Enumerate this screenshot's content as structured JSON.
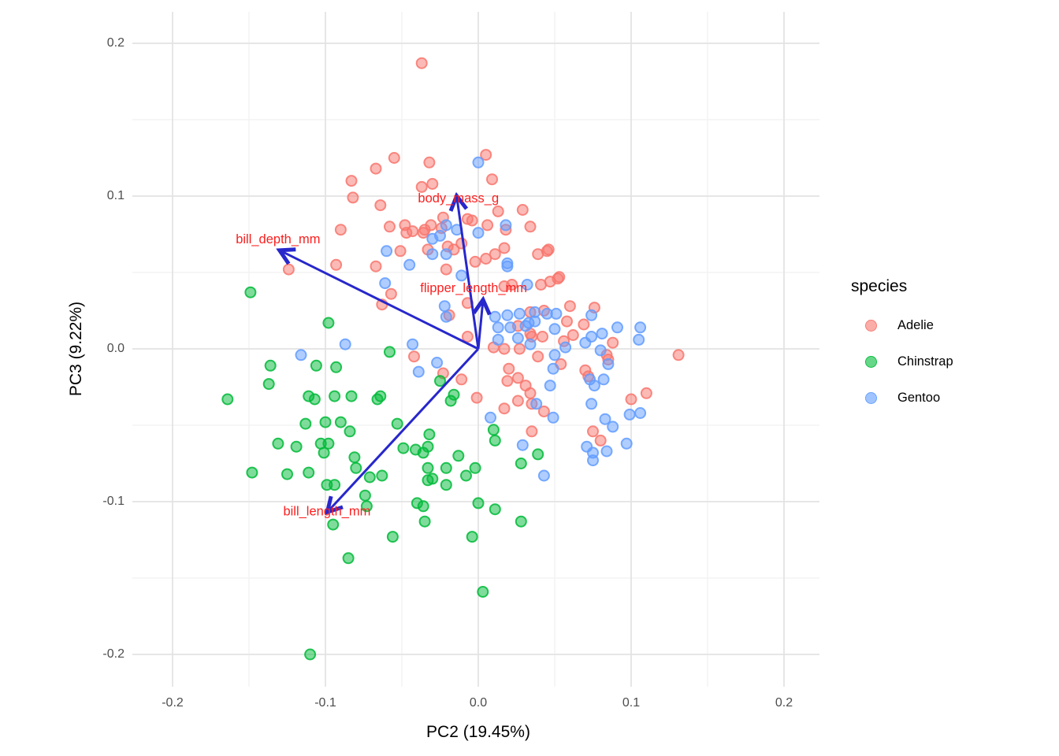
{
  "legend": {
    "title": "species",
    "items": [
      {
        "label": "Adelie",
        "color": "#F8766D"
      },
      {
        "label": "Chinstrap",
        "color": "#00BA38"
      },
      {
        "label": "Gentoo",
        "color": "#619CFF"
      }
    ]
  },
  "chart_data": {
    "type": "scatter",
    "title": "",
    "xlabel": "PC2 (19.45%)",
    "ylabel": "PC3 (9.22%)",
    "xlim": [
      -0.227,
      0.224
    ],
    "ylim": [
      -0.223,
      0.222
    ],
    "x_ticks": [
      -0.2,
      -0.1,
      0.0,
      0.1,
      0.2
    ],
    "y_ticks": [
      -0.2,
      -0.1,
      0.0,
      0.1,
      0.2
    ],
    "grid": true,
    "legend_position": "right",
    "point_alpha": 0.5,
    "arrow_color": "#2727CC",
    "loading_label_color": "#FB1F1F",
    "grid_major_color": "#E3E3E3",
    "grid_minor_color": "#F1F1F1",
    "loadings": [
      {
        "name": "body_mass_g",
        "x": -0.014,
        "y": 0.099,
        "label_x": -0.013,
        "label_y": 0.096
      },
      {
        "name": "bill_depth_mm",
        "x": -0.129,
        "y": 0.064,
        "label_x": -0.131,
        "label_y": 0.069
      },
      {
        "name": "flipper_length_mm",
        "x": 0.003,
        "y": 0.031,
        "label_x": -0.003,
        "label_y": 0.037
      },
      {
        "name": "bill_length_mm",
        "x": -0.098,
        "y": -0.106,
        "label_x": -0.099,
        "label_y": -0.109
      }
    ],
    "series": [
      {
        "name": "Adelie",
        "color": "#F8766D",
        "points": [
          [
            -0.037,
            0.187
          ],
          [
            -0.083,
            0.11
          ],
          [
            -0.082,
            0.099
          ],
          [
            -0.09,
            0.078
          ],
          [
            -0.055,
            0.125
          ],
          [
            -0.067,
            0.118
          ],
          [
            0.005,
            0.127
          ],
          [
            -0.032,
            0.122
          ],
          [
            0.009,
            0.111
          ],
          [
            -0.03,
            0.108
          ],
          [
            -0.037,
            0.106
          ],
          [
            -0.064,
            0.094
          ],
          [
            0.029,
            0.091
          ],
          [
            0.013,
            0.09
          ],
          [
            0.034,
            0.08
          ],
          [
            -0.058,
            0.08
          ],
          [
            -0.048,
            0.081
          ],
          [
            -0.043,
            0.077
          ],
          [
            -0.023,
            0.086
          ],
          [
            -0.031,
            0.081
          ],
          [
            -0.004,
            0.084
          ],
          [
            0.006,
            0.081
          ],
          [
            0.018,
            0.078
          ],
          [
            -0.036,
            0.076
          ],
          [
            -0.047,
            0.076
          ],
          [
            -0.007,
            0.085
          ],
          [
            -0.024,
            0.079
          ],
          [
            -0.035,
            0.078
          ],
          [
            -0.016,
            0.065
          ],
          [
            -0.033,
            0.065
          ],
          [
            -0.124,
            0.052
          ],
          [
            -0.093,
            0.055
          ],
          [
            -0.051,
            0.064
          ],
          [
            -0.02,
            0.067
          ],
          [
            -0.011,
            0.069
          ],
          [
            -0.002,
            0.057
          ],
          [
            0.005,
            0.059
          ],
          [
            0.011,
            0.062
          ],
          [
            0.039,
            0.062
          ],
          [
            0.046,
            0.065
          ],
          [
            -0.067,
            0.054
          ],
          [
            -0.021,
            0.052
          ],
          [
            0.053,
            0.047
          ],
          [
            0.045,
            0.064
          ],
          [
            0.052,
            0.046
          ],
          [
            0.047,
            0.044
          ],
          [
            0.041,
            0.042
          ],
          [
            0.022,
            0.042
          ],
          [
            0.017,
            0.041
          ],
          [
            0.017,
            0.066
          ],
          [
            -0.057,
            0.036
          ],
          [
            -0.063,
            0.029
          ],
          [
            -0.019,
            0.022
          ],
          [
            -0.007,
            0.03
          ],
          [
            0.034,
            0.024
          ],
          [
            0.043,
            0.025
          ],
          [
            0.06,
            0.028
          ],
          [
            0.076,
            0.027
          ],
          [
            0.058,
            0.018
          ],
          [
            0.026,
            0.015
          ],
          [
            0.069,
            0.016
          ],
          [
            0.034,
            0.01
          ],
          [
            0.035,
            0.008
          ],
          [
            0.042,
            0.008
          ],
          [
            0.062,
            0.009
          ],
          [
            0.088,
            0.004
          ],
          [
            0.056,
            0.005
          ],
          [
            -0.007,
            0.008
          ],
          [
            0.01,
            0.001
          ],
          [
            0.017,
            0.0
          ],
          [
            0.027,
            0.0
          ],
          [
            0.039,
            -0.005
          ],
          [
            -0.042,
            -0.005
          ],
          [
            0.054,
            -0.01
          ],
          [
            0.02,
            -0.013
          ],
          [
            -0.023,
            -0.016
          ],
          [
            0.026,
            -0.019
          ],
          [
            0.019,
            -0.021
          ],
          [
            -0.011,
            -0.02
          ],
          [
            0.031,
            -0.024
          ],
          [
            0.034,
            -0.029
          ],
          [
            -0.001,
            -0.032
          ],
          [
            0.026,
            -0.034
          ],
          [
            0.035,
            -0.036
          ],
          [
            0.017,
            -0.039
          ],
          [
            0.043,
            -0.041
          ],
          [
            0.084,
            -0.004
          ],
          [
            0.085,
            -0.007
          ],
          [
            0.131,
            -0.004
          ],
          [
            0.07,
            -0.014
          ],
          [
            0.072,
            -0.018
          ],
          [
            0.11,
            -0.029
          ],
          [
            0.1,
            -0.033
          ],
          [
            0.075,
            -0.054
          ],
          [
            0.08,
            -0.06
          ],
          [
            0.035,
            -0.054
          ]
        ]
      },
      {
        "name": "Chinstrap",
        "color": "#00BA38",
        "points": [
          [
            -0.149,
            0.037
          ],
          [
            -0.098,
            0.017
          ],
          [
            -0.058,
            -0.002
          ],
          [
            -0.136,
            -0.011
          ],
          [
            -0.106,
            -0.011
          ],
          [
            -0.093,
            -0.012
          ],
          [
            -0.137,
            -0.023
          ],
          [
            -0.164,
            -0.033
          ],
          [
            -0.111,
            -0.031
          ],
          [
            -0.107,
            -0.033
          ],
          [
            -0.094,
            -0.031
          ],
          [
            -0.083,
            -0.031
          ],
          [
            -0.025,
            -0.021
          ],
          [
            -0.016,
            -0.03
          ],
          [
            -0.018,
            -0.034
          ],
          [
            -0.064,
            -0.031
          ],
          [
            -0.066,
            -0.033
          ],
          [
            -0.113,
            -0.049
          ],
          [
            -0.1,
            -0.048
          ],
          [
            -0.09,
            -0.048
          ],
          [
            -0.084,
            -0.054
          ],
          [
            -0.053,
            -0.049
          ],
          [
            -0.131,
            -0.062
          ],
          [
            -0.119,
            -0.064
          ],
          [
            -0.103,
            -0.062
          ],
          [
            -0.098,
            -0.062
          ],
          [
            -0.101,
            -0.068
          ],
          [
            -0.081,
            -0.071
          ],
          [
            -0.032,
            -0.056
          ],
          [
            -0.033,
            -0.064
          ],
          [
            -0.049,
            -0.065
          ],
          [
            -0.013,
            -0.07
          ],
          [
            0.01,
            -0.053
          ],
          [
            0.011,
            -0.06
          ],
          [
            0.039,
            -0.069
          ],
          [
            0.028,
            -0.075
          ],
          [
            -0.041,
            -0.066
          ],
          [
            -0.036,
            -0.068
          ],
          [
            -0.08,
            -0.078
          ],
          [
            -0.063,
            -0.083
          ],
          [
            -0.071,
            -0.084
          ],
          [
            -0.033,
            -0.086
          ],
          [
            -0.021,
            -0.089
          ],
          [
            -0.008,
            -0.083
          ],
          [
            -0.002,
            -0.078
          ],
          [
            -0.021,
            -0.078
          ],
          [
            -0.033,
            -0.078
          ],
          [
            -0.03,
            -0.085
          ],
          [
            -0.148,
            -0.081
          ],
          [
            -0.125,
            -0.082
          ],
          [
            -0.111,
            -0.081
          ],
          [
            -0.099,
            -0.089
          ],
          [
            -0.094,
            -0.089
          ],
          [
            -0.074,
            -0.096
          ],
          [
            -0.073,
            -0.103
          ],
          [
            -0.04,
            -0.101
          ],
          [
            -0.036,
            -0.103
          ],
          [
            0.0,
            -0.101
          ],
          [
            0.011,
            -0.105
          ],
          [
            -0.035,
            -0.113
          ],
          [
            0.028,
            -0.113
          ],
          [
            -0.095,
            -0.115
          ],
          [
            -0.056,
            -0.123
          ],
          [
            -0.004,
            -0.123
          ],
          [
            -0.085,
            -0.137
          ],
          [
            0.003,
            -0.159
          ],
          [
            -0.11,
            -0.2
          ]
        ]
      },
      {
        "name": "Gentoo",
        "color": "#619CFF",
        "points": [
          [
            0.0,
            0.122
          ],
          [
            -0.021,
            0.081
          ],
          [
            -0.014,
            0.078
          ],
          [
            0.0,
            0.076
          ],
          [
            -0.025,
            0.074
          ],
          [
            0.018,
            0.081
          ],
          [
            -0.03,
            0.072
          ],
          [
            -0.06,
            0.064
          ],
          [
            -0.03,
            0.062
          ],
          [
            -0.021,
            0.062
          ],
          [
            0.019,
            0.056
          ],
          [
            0.019,
            0.054
          ],
          [
            -0.045,
            0.055
          ],
          [
            -0.011,
            0.048
          ],
          [
            -0.061,
            0.043
          ],
          [
            0.032,
            0.042
          ],
          [
            -0.022,
            0.028
          ],
          [
            -0.021,
            0.021
          ],
          [
            0.019,
            0.022
          ],
          [
            0.027,
            0.023
          ],
          [
            0.051,
            0.023
          ],
          [
            0.011,
            0.021
          ],
          [
            0.074,
            0.022
          ],
          [
            0.045,
            0.023
          ],
          [
            0.037,
            0.024
          ],
          [
            0.033,
            0.017
          ],
          [
            0.037,
            0.018
          ],
          [
            0.05,
            0.013
          ],
          [
            0.091,
            0.014
          ],
          [
            0.106,
            0.014
          ],
          [
            0.081,
            0.01
          ],
          [
            0.013,
            0.014
          ],
          [
            0.021,
            0.014
          ],
          [
            0.031,
            0.015
          ],
          [
            0.074,
            0.008
          ],
          [
            0.105,
            0.006
          ],
          [
            0.07,
            0.004
          ],
          [
            0.013,
            0.006
          ],
          [
            0.026,
            0.007
          ],
          [
            0.034,
            0.003
          ],
          [
            0.057,
            0.001
          ],
          [
            0.08,
            -0.001
          ],
          [
            -0.087,
            0.003
          ],
          [
            -0.116,
            -0.004
          ],
          [
            -0.043,
            0.003
          ],
          [
            -0.027,
            -0.009
          ],
          [
            -0.039,
            -0.015
          ],
          [
            0.05,
            -0.004
          ],
          [
            0.049,
            -0.013
          ],
          [
            0.085,
            -0.01
          ],
          [
            0.073,
            -0.02
          ],
          [
            0.076,
            -0.024
          ],
          [
            0.082,
            -0.02
          ],
          [
            0.047,
            -0.024
          ],
          [
            0.038,
            -0.036
          ],
          [
            0.074,
            -0.036
          ],
          [
            0.008,
            -0.045
          ],
          [
            0.049,
            -0.045
          ],
          [
            0.099,
            -0.043
          ],
          [
            0.106,
            -0.042
          ],
          [
            0.083,
            -0.046
          ],
          [
            0.088,
            -0.051
          ],
          [
            0.029,
            -0.063
          ],
          [
            0.097,
            -0.062
          ],
          [
            0.071,
            -0.064
          ],
          [
            0.075,
            -0.068
          ],
          [
            0.084,
            -0.067
          ],
          [
            0.075,
            -0.073
          ],
          [
            0.043,
            -0.083
          ]
        ]
      }
    ]
  }
}
